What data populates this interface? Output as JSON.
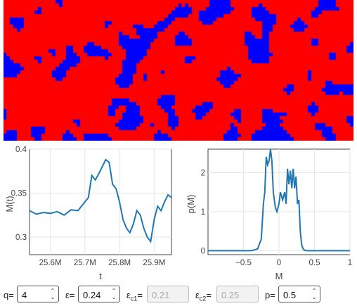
{
  "lattice": {
    "colors": {
      "up": "#0000ff",
      "down": "#ff0000"
    }
  },
  "magnetization_plot": {
    "xlabel": "t",
    "ylabel": "M(t)",
    "x_ticks": [
      "25.6M",
      "25.7M",
      "25.8M",
      "25.9M"
    ],
    "y_ticks": [
      "0.3",
      "0.35",
      "0.4"
    ],
    "line_color": "#1f77b4"
  },
  "distribution_plot": {
    "xlabel": "M",
    "ylabel": "p(M)",
    "x_ticks": [
      "−0.5",
      "0",
      "0.5",
      "1"
    ],
    "y_ticks": [
      "0",
      "1",
      "2"
    ],
    "line_color": "#1f77b4"
  },
  "chart_data": [
    {
      "type": "line",
      "xlabel": "t",
      "ylabel": "M(t)",
      "xlim": [
        25540000,
        25950000
      ],
      "ylim": [
        0.28,
        0.4
      ],
      "series": [
        {
          "x": [
            25540000,
            25560000,
            25580000,
            25600000,
            25620000,
            25640000,
            25660000,
            25680000,
            25700000,
            25710000,
            25720000,
            25730000,
            25740000,
            25750000,
            25760000,
            25770000,
            25780000,
            25790000,
            25800000,
            25810000,
            25820000,
            25830000,
            25840000,
            25850000,
            25860000,
            25870000,
            25880000,
            25890000,
            25900000,
            25910000,
            25920000,
            25930000,
            25940000,
            25950000
          ],
          "y": [
            0.33,
            0.326,
            0.328,
            0.327,
            0.329,
            0.325,
            0.331,
            0.33,
            0.34,
            0.345,
            0.37,
            0.365,
            0.372,
            0.38,
            0.388,
            0.385,
            0.36,
            0.355,
            0.34,
            0.32,
            0.31,
            0.305,
            0.315,
            0.33,
            0.325,
            0.31,
            0.3,
            0.295,
            0.32,
            0.335,
            0.33,
            0.34,
            0.348,
            0.345
          ]
        }
      ]
    },
    {
      "type": "line",
      "xlabel": "M",
      "ylabel": "p(M)",
      "xlim": [
        -1,
        1
      ],
      "ylim": [
        -0.1,
        2.6
      ],
      "series": [
        {
          "x": [
            -1,
            -0.4,
            -0.35,
            -0.3,
            -0.27,
            -0.25,
            -0.22,
            -0.2,
            -0.18,
            -0.16,
            -0.14,
            -0.12,
            -0.1,
            -0.08,
            -0.05,
            -0.03,
            0,
            0.02,
            0.05,
            0.08,
            0.1,
            0.12,
            0.14,
            0.16,
            0.18,
            0.2,
            0.22,
            0.24,
            0.26,
            0.28,
            0.3,
            0.32,
            0.34,
            0.36,
            0.4,
            1
          ],
          "y": [
            0,
            0,
            0.02,
            0.05,
            0.2,
            0.3,
            1.2,
            1.5,
            2.4,
            2.2,
            2.3,
            2.6,
            2.3,
            1.5,
            1.1,
            1.0,
            1.2,
            1.5,
            1.3,
            1.5,
            1.2,
            2.1,
            1.7,
            2.05,
            1.6,
            2.1,
            1.6,
            1.9,
            1.2,
            1.3,
            0.5,
            0.15,
            0.05,
            0.01,
            0,
            0
          ]
        }
      ]
    }
  ],
  "controls": {
    "q": {
      "label": "q=",
      "value": "4"
    },
    "eps": {
      "label": "ε=",
      "value": "0.24"
    },
    "eps_c1": {
      "label": "ε",
      "sub": "c1",
      "eq": "=",
      "value": "0.21"
    },
    "eps_c2": {
      "label": "ε",
      "sub": "c2",
      "eq": "=",
      "value": "0.25"
    },
    "p": {
      "label": "p=",
      "value": "0.5"
    },
    "spinner_glyphs": {
      "up": "⌃",
      "down": "⌄"
    }
  }
}
